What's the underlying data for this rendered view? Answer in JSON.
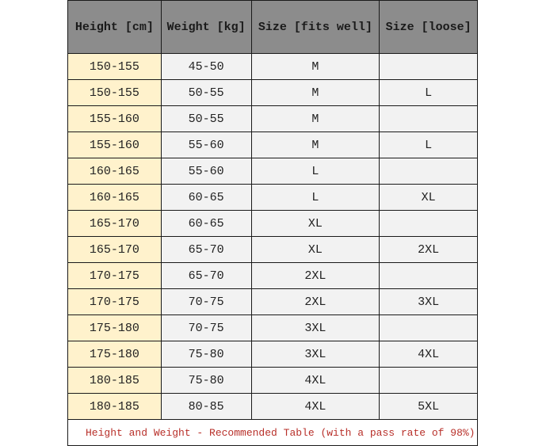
{
  "headers": [
    "Height [cm]",
    "Weight [kg]",
    "Size [fits well]",
    "Size [loose]"
  ],
  "rows": [
    [
      "150-155",
      "45-50",
      "M",
      ""
    ],
    [
      "150-155",
      "50-55",
      "M",
      "L"
    ],
    [
      "155-160",
      "50-55",
      "M",
      ""
    ],
    [
      "155-160",
      "55-60",
      "M",
      "L"
    ],
    [
      "160-165",
      "55-60",
      "L",
      ""
    ],
    [
      "160-165",
      "60-65",
      "L",
      "XL"
    ],
    [
      "165-170",
      "60-65",
      "XL",
      ""
    ],
    [
      "165-170",
      "65-70",
      "XL",
      "2XL"
    ],
    [
      "170-175",
      "65-70",
      "2XL",
      ""
    ],
    [
      "170-175",
      "70-75",
      "2XL",
      "3XL"
    ],
    [
      "175-180",
      "70-75",
      "3XL",
      ""
    ],
    [
      "175-180",
      "75-80",
      "3XL",
      "4XL"
    ],
    [
      "180-185",
      "75-80",
      "4XL",
      ""
    ],
    [
      "180-185",
      "80-85",
      "4XL",
      "5XL"
    ]
  ],
  "footer": "Height and Weight - Recommended Table (with a pass rate of 98%)",
  "colors": {
    "header_bg": "#8c8c8c",
    "height_col_bg": "#fff2cc",
    "cell_bg": "#f2f2f2",
    "footer_text": "#b8302a"
  }
}
